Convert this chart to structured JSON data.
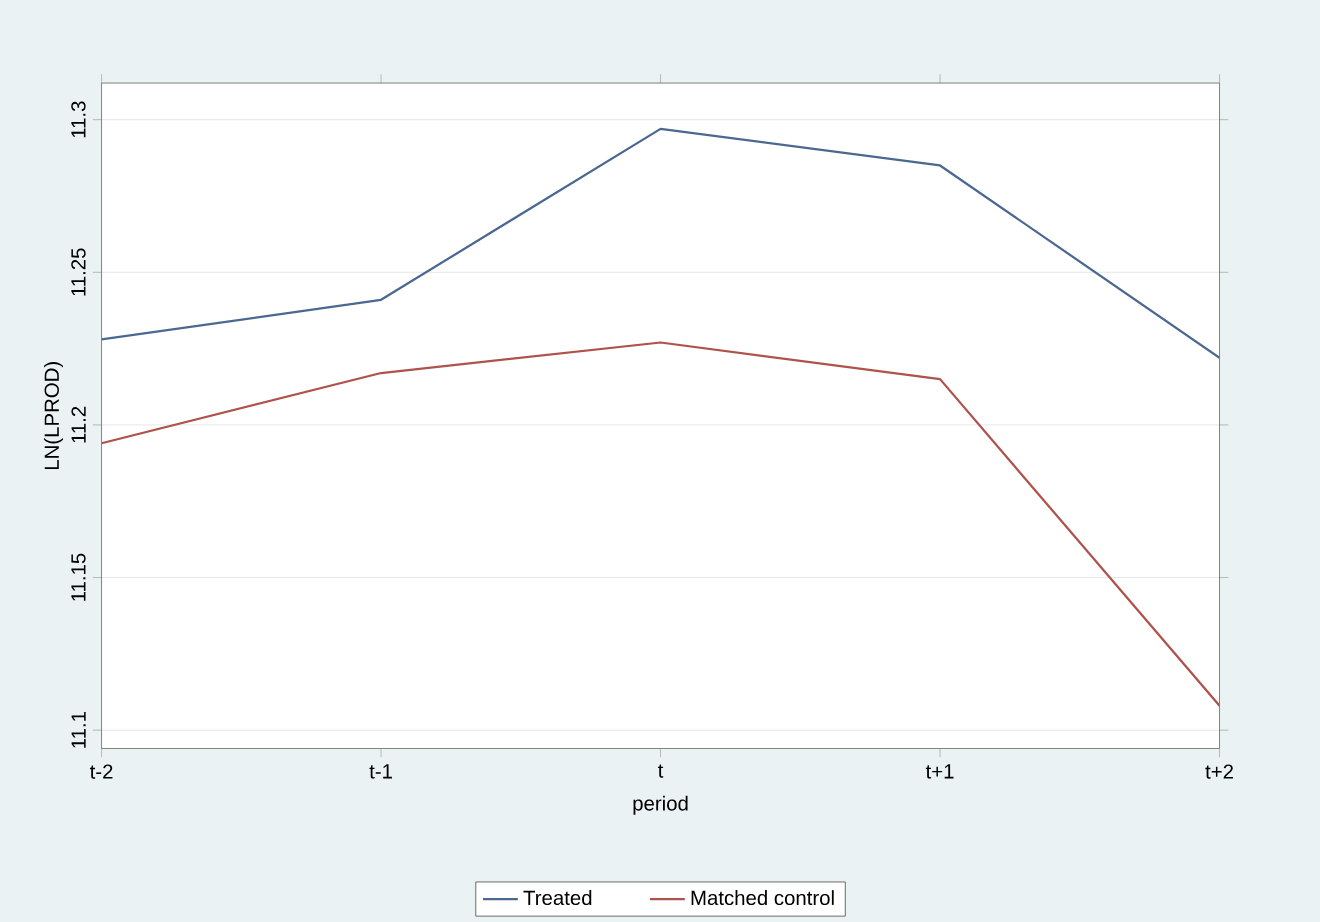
{
  "chart_data": {
    "type": "line",
    "xlabel": "period",
    "ylabel": "LN(LPROD)",
    "categories": [
      "t-2",
      "t-1",
      "t",
      "t+1",
      "t+2"
    ],
    "series": [
      {
        "name": "Treated",
        "color": "#4a6890",
        "values": [
          11.228,
          11.241,
          11.297,
          11.285,
          11.222
        ]
      },
      {
        "name": "Matched control",
        "color": "#b0524c",
        "values": [
          11.194,
          11.217,
          11.227,
          11.215,
          11.108
        ]
      }
    ],
    "ylim": [
      11.094,
      11.312
    ],
    "yticks": [
      11.1,
      11.15,
      11.2,
      11.25,
      11.3
    ],
    "grid": "y",
    "legend": "bottom",
    "marker": "none",
    "line_style": "solid"
  }
}
